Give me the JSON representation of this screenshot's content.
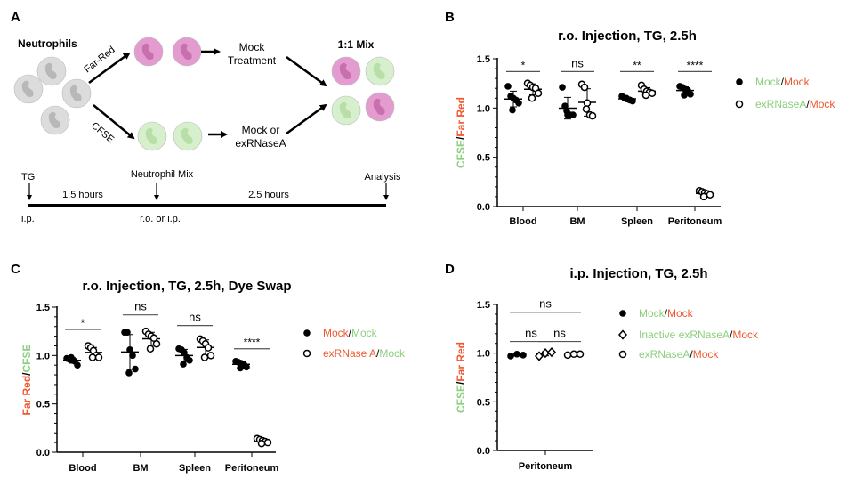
{
  "colors": {
    "green": "#8ccf7e",
    "red": "#f0582f",
    "black": "#000000",
    "farred_cell": "#e39bd0",
    "cfse_cell": "#d6efcc",
    "grey_cell": "#dcdcdc"
  },
  "panel_a": {
    "label": "A",
    "neutrophils": "Neutrophils",
    "far_red": "Far-Red",
    "cfse": "CFSE",
    "mock_treatment": [
      "Mock",
      "Treatment"
    ],
    "mock_or_ex": [
      "Mock or",
      "exRNaseA"
    ],
    "mix": "1:1 Mix",
    "timeline": {
      "tg": "TG",
      "ip": "i.p.",
      "t1": "1.5 hours",
      "neutrophil_mix": "Neutrophil Mix",
      "route": "r.o. or i.p.",
      "t2": "2.5 hours",
      "analysis": "Analysis"
    }
  },
  "chart_data": [
    {
      "panel": "B",
      "type": "scatter",
      "title": "r.o. Injection, TG, 2.5h",
      "ylabel": [
        {
          "text": "CFSE",
          "color": "#8ccf7e"
        },
        {
          "text": "/",
          "color": "#000000"
        },
        {
          "text": "Far Red",
          "color": "#f0582f"
        }
      ],
      "ylim": [
        0,
        1.5
      ],
      "yticks": [
        "0.0",
        "0.5",
        "1.0",
        "1.5"
      ],
      "categories": [
        "Blood",
        "BM",
        "Spleen",
        "Peritoneum"
      ],
      "legend_position": "right",
      "series": [
        {
          "marker": "filled-circle",
          "legend": [
            {
              "text": "Mock",
              "color": "#8ccf7e"
            },
            {
              "text": "/",
              "color": "#000000"
            },
            {
              "text": "Mock",
              "color": "#f0582f"
            }
          ],
          "values": [
            [
              1.22,
              1.12,
              1.1,
              1.08,
              1.05,
              0.98
            ],
            [
              1.21,
              1.02,
              0.93,
              0.93,
              0.93,
              0.97
            ],
            [
              1.12,
              1.1,
              1.09,
              1.08,
              1.07,
              1.1
            ],
            [
              1.22,
              1.21,
              1.19,
              1.18,
              1.14,
              1.13
            ]
          ]
        },
        {
          "marker": "open-circle",
          "legend": [
            {
              "text": "exRNaseA",
              "color": "#8ccf7e"
            },
            {
              "text": "/",
              "color": "#000000"
            },
            {
              "text": "Mock",
              "color": "#f0582f"
            }
          ],
          "values": [
            [
              1.25,
              1.23,
              1.21,
              1.2,
              1.15,
              1.1
            ],
            [
              1.24,
              1.21,
              1.05,
              0.93,
              0.92,
              0.99
            ],
            [
              1.23,
              1.19,
              1.17,
              1.16,
              1.15,
              1.13
            ],
            [
              0.16,
              0.15,
              0.14,
              0.13,
              0.12,
              0.1
            ]
          ]
        }
      ],
      "significance": [
        {
          "label": "*",
          "from": [
            0,
            0
          ],
          "to": [
            0,
            1
          ],
          "y": 1.37
        },
        {
          "label": "ns",
          "from": [
            1,
            0
          ],
          "to": [
            1,
            1
          ],
          "y": 1.37
        },
        {
          "label": "**",
          "from": [
            2,
            0
          ],
          "to": [
            2,
            1
          ],
          "y": 1.37
        },
        {
          "label": "****",
          "from": [
            3,
            0
          ],
          "to": [
            3,
            1
          ],
          "y": 1.37
        }
      ]
    },
    {
      "panel": "C",
      "type": "scatter",
      "title": "r.o. Injection, TG, 2.5h, Dye Swap",
      "ylabel": [
        {
          "text": "Far Red",
          "color": "#f0582f"
        },
        {
          "text": "/",
          "color": "#000000"
        },
        {
          "text": "CFSE",
          "color": "#8ccf7e"
        }
      ],
      "ylim": [
        0,
        1.5
      ],
      "yticks": [
        "0.0",
        "0.5",
        "1.0",
        "1.5"
      ],
      "categories": [
        "Blood",
        "BM",
        "Spleen",
        "Peritoneum"
      ],
      "legend_position": "right",
      "series": [
        {
          "marker": "filled-circle",
          "legend": [
            {
              "text": "Mock",
              "color": "#f0582f"
            },
            {
              "text": "/",
              "color": "#000000"
            },
            {
              "text": "Mock",
              "color": "#8ccf7e"
            }
          ],
          "values": [
            [
              0.97,
              0.96,
              0.95,
              0.94,
              0.9,
              0.98
            ],
            [
              1.24,
              1.24,
              1.06,
              1.0,
              0.86,
              0.82
            ],
            [
              1.07,
              1.06,
              1.03,
              0.98,
              0.95,
              0.91
            ],
            [
              0.94,
              0.93,
              0.92,
              0.91,
              0.88,
              0.87
            ]
          ]
        },
        {
          "marker": "open-circle",
          "legend": [
            {
              "text": "exRNase A",
              "color": "#f0582f"
            },
            {
              "text": "/",
              "color": "#000000"
            },
            {
              "text": "Mock",
              "color": "#8ccf7e"
            }
          ],
          "values": [
            [
              1.1,
              1.08,
              1.05,
              1.0,
              0.98,
              0.98
            ],
            [
              1.25,
              1.22,
              1.2,
              1.18,
              1.12,
              1.07
            ],
            [
              1.17,
              1.15,
              1.12,
              1.08,
              1.0,
              0.98
            ],
            [
              0.14,
              0.13,
              0.12,
              0.11,
              0.1,
              0.09
            ]
          ]
        }
      ],
      "significance": [
        {
          "label": "*",
          "from": [
            0,
            0
          ],
          "to": [
            0,
            1
          ],
          "y": 1.27
        },
        {
          "label": "ns",
          "from": [
            1,
            0
          ],
          "to": [
            1,
            1
          ],
          "y": 1.42
        },
        {
          "label": "ns",
          "from": [
            2,
            0
          ],
          "to": [
            2,
            1
          ],
          "y": 1.31
        },
        {
          "label": "****",
          "from": [
            3,
            0
          ],
          "to": [
            3,
            1
          ],
          "y": 1.07
        }
      ]
    },
    {
      "panel": "D",
      "type": "scatter",
      "title": "i.p. Injection, TG, 2.5h",
      "ylabel": [
        {
          "text": "CFSE",
          "color": "#8ccf7e"
        },
        {
          "text": "/",
          "color": "#000000"
        },
        {
          "text": "Far Red",
          "color": "#f0582f"
        }
      ],
      "ylim": [
        0,
        1.5
      ],
      "yticks": [
        "0.0",
        "0.5",
        "1.0",
        "1.5"
      ],
      "categories": [
        "Peritoneum"
      ],
      "legend_position": "right",
      "series": [
        {
          "marker": "filled-circle",
          "legend": [
            {
              "text": "Mock",
              "color": "#8ccf7e"
            },
            {
              "text": "/",
              "color": "#000000"
            },
            {
              "text": "Mock",
              "color": "#f0582f"
            }
          ],
          "values": [
            [
              0.97,
              0.99,
              0.98
            ]
          ]
        },
        {
          "marker": "open-diamond",
          "legend": [
            {
              "text": "Inactive exRNaseA",
              "color": "#8ccf7e"
            },
            {
              "text": "/",
              "color": "#000000"
            },
            {
              "text": "Mock",
              "color": "#f0582f"
            }
          ],
          "values": [
            [
              0.97,
              1.0,
              1.01
            ]
          ]
        },
        {
          "marker": "open-circle",
          "legend": [
            {
              "text": "exRNaseA",
              "color": "#8ccf7e"
            },
            {
              "text": "/",
              "color": "#000000"
            },
            {
              "text": "Mock",
              "color": "#f0582f"
            }
          ],
          "values": [
            [
              0.98,
              0.99,
              0.99
            ]
          ]
        }
      ],
      "significance": [
        {
          "label": "ns",
          "from": [
            0,
            0
          ],
          "to": [
            0,
            2
          ],
          "y": 1.42
        },
        {
          "label": "ns",
          "from": [
            0,
            0
          ],
          "to": [
            0,
            1
          ],
          "y": 1.12
        },
        {
          "label": "ns",
          "from": [
            0,
            1
          ],
          "to": [
            0,
            2
          ],
          "y": 1.12
        }
      ]
    }
  ]
}
